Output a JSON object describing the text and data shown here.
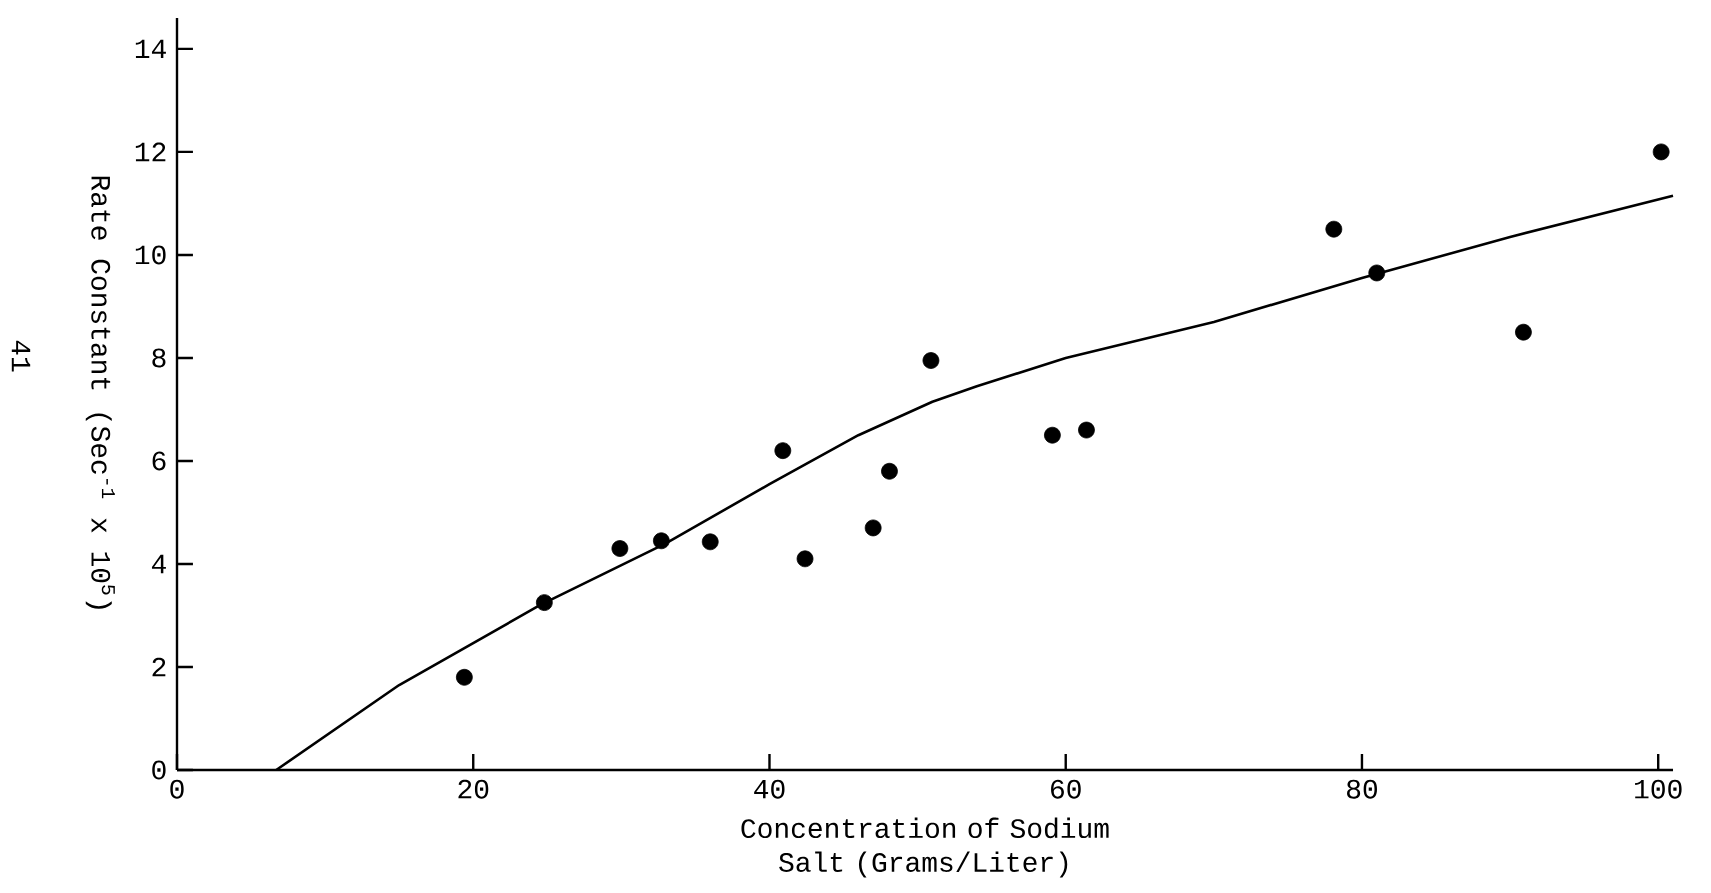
{
  "chart_data": {
    "type": "scatter",
    "xlabel": "Concentration of Sodium Salt (Grams/Liter)",
    "ylabel": "Rate Constant (Sec$^{-1}$ x 10$^{5}$)",
    "annotations": [
      "41"
    ],
    "xlim": [
      0,
      101
    ],
    "ylim": [
      0,
      14.6
    ],
    "xticks": [
      0,
      20,
      40,
      60,
      80,
      100
    ],
    "yticks": [
      0,
      2,
      4,
      6,
      8,
      10,
      12,
      14
    ],
    "marker": "circle",
    "series": [
      {
        "color": "#000000",
        "x": [
          19.4,
          24.8,
          29.9,
          32.7,
          36.0,
          40.9,
          42.4,
          47.0,
          48.1,
          50.9,
          59.1,
          61.4,
          78.1,
          81.0,
          90.9,
          100.2
        ],
        "values": [
          1.8,
          3.25,
          4.3,
          4.45,
          4.43,
          6.2,
          4.1,
          4.7,
          5.8,
          7.95,
          6.5,
          6.6,
          10.5,
          9.65,
          8.5,
          12.0
        ]
      },
      {
        "type": "line",
        "color": "#000000",
        "marker": "none",
        "line_style": "solid",
        "x": [
          6.7,
          15,
          24.5,
          33,
          40,
          46,
          51,
          54,
          60,
          70,
          80,
          90,
          101
        ],
        "values": [
          0,
          1.65,
          3.2,
          4.4,
          5.55,
          6.5,
          7.15,
          7.45,
          8.0,
          8.7,
          9.55,
          10.35,
          11.15
        ]
      }
    ]
  }
}
